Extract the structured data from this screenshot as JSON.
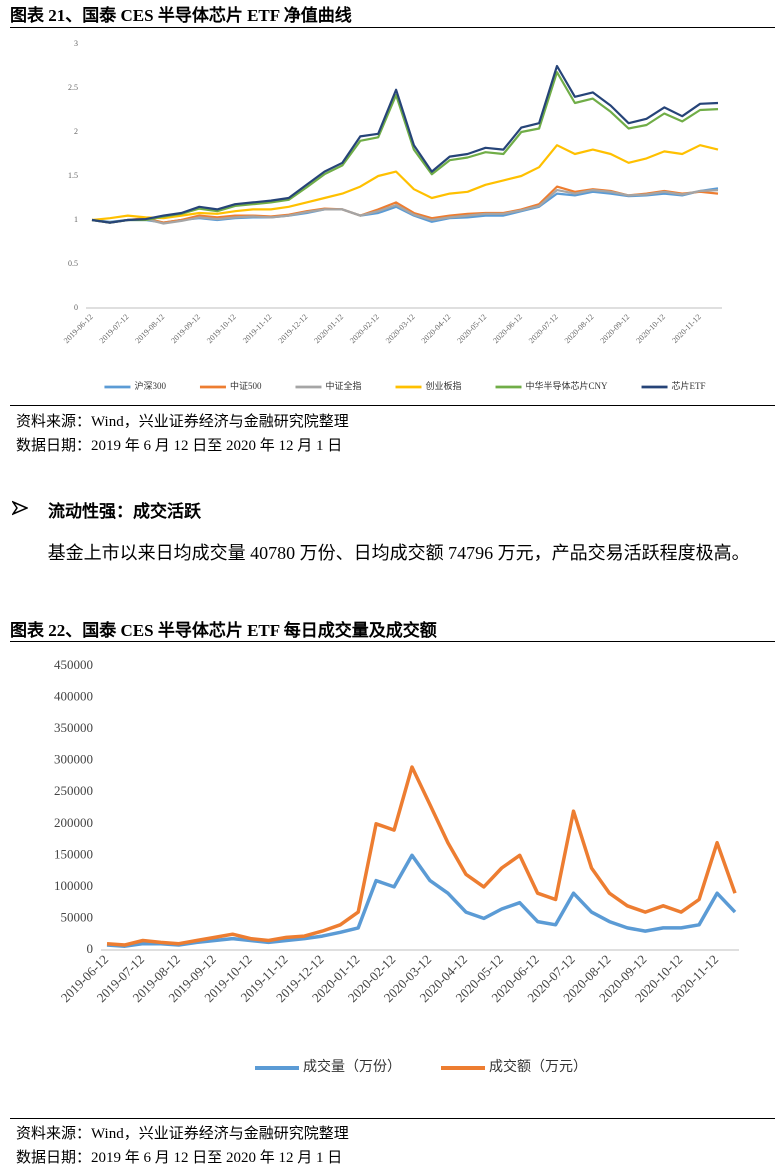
{
  "chart_data": [
    {
      "type": "line",
      "title": "图表 21、国泰 CES 半导体芯片 ETF 净值曲线",
      "categories": [
        "2019-06-12",
        null,
        "2019-07-12",
        null,
        "2019-08-12",
        null,
        "2019-09-12",
        null,
        "2019-10-12",
        null,
        "2019-11-12",
        null,
        "2019-12-12",
        null,
        "2020-01-12",
        null,
        "2020-02-12",
        null,
        "2020-03-12",
        null,
        "2020-04-12",
        null,
        "2020-05-12",
        null,
        "2020-06-12",
        null,
        "2020-07-12",
        null,
        "2020-08-12",
        null,
        "2020-09-12",
        null,
        "2020-10-12",
        null,
        "2020-11-12",
        null
      ],
      "ylim": [
        0,
        3
      ],
      "yticks": [
        0,
        0.5,
        1,
        1.5,
        2,
        2.5,
        3
      ],
      "grid": false,
      "series": [
        {
          "name": "沪深300",
          "color": "#5b9bd5",
          "values": [
            1.0,
            0.98,
            1.0,
            1.0,
            0.97,
            1.0,
            1.02,
            1.0,
            1.02,
            1.03,
            1.03,
            1.05,
            1.08,
            1.12,
            1.12,
            1.05,
            1.08,
            1.15,
            1.05,
            0.98,
            1.02,
            1.03,
            1.05,
            1.05,
            1.1,
            1.15,
            1.3,
            1.28,
            1.32,
            1.3,
            1.27,
            1.28,
            1.3,
            1.28,
            1.33,
            1.36
          ]
        },
        {
          "name": "中证500",
          "color": "#ed7d31",
          "values": [
            1.0,
            0.97,
            1.0,
            1.02,
            0.97,
            1.0,
            1.05,
            1.03,
            1.05,
            1.05,
            1.04,
            1.06,
            1.1,
            1.13,
            1.12,
            1.05,
            1.12,
            1.2,
            1.08,
            1.02,
            1.05,
            1.07,
            1.08,
            1.08,
            1.12,
            1.18,
            1.38,
            1.32,
            1.35,
            1.33,
            1.28,
            1.3,
            1.33,
            1.3,
            1.32,
            1.3
          ]
        },
        {
          "name": "中证全指",
          "color": "#a5a5a5",
          "values": [
            1.0,
            0.97,
            1.0,
            1.01,
            0.96,
            0.99,
            1.03,
            1.01,
            1.03,
            1.04,
            1.03,
            1.05,
            1.09,
            1.12,
            1.12,
            1.05,
            1.1,
            1.17,
            1.06,
            1.0,
            1.03,
            1.05,
            1.07,
            1.07,
            1.11,
            1.16,
            1.34,
            1.3,
            1.34,
            1.32,
            1.28,
            1.29,
            1.32,
            1.29,
            1.33,
            1.34
          ]
        },
        {
          "name": "创业板指",
          "color": "#ffc000",
          "values": [
            1.0,
            1.02,
            1.05,
            1.03,
            1.02,
            1.05,
            1.08,
            1.07,
            1.1,
            1.12,
            1.12,
            1.15,
            1.2,
            1.25,
            1.3,
            1.38,
            1.5,
            1.55,
            1.35,
            1.25,
            1.3,
            1.32,
            1.4,
            1.45,
            1.5,
            1.6,
            1.85,
            1.75,
            1.8,
            1.75,
            1.65,
            1.7,
            1.78,
            1.75,
            1.85,
            1.8
          ]
        },
        {
          "name": "中华半导体芯片CNY",
          "color": "#70ad47",
          "values": [
            1.0,
            0.97,
            1.0,
            1.0,
            1.04,
            1.07,
            1.13,
            1.1,
            1.16,
            1.18,
            1.2,
            1.23,
            1.37,
            1.52,
            1.62,
            1.9,
            1.94,
            2.42,
            1.8,
            1.52,
            1.68,
            1.71,
            1.77,
            1.75,
            2.0,
            2.04,
            2.68,
            2.33,
            2.38,
            2.23,
            2.04,
            2.08,
            2.21,
            2.12,
            2.25,
            2.26
          ]
        },
        {
          "name": "芯片ETF",
          "color": "#264478",
          "values": [
            1.0,
            0.97,
            1.0,
            1.01,
            1.05,
            1.08,
            1.15,
            1.12,
            1.18,
            1.2,
            1.22,
            1.25,
            1.4,
            1.55,
            1.65,
            1.95,
            1.98,
            2.48,
            1.85,
            1.55,
            1.72,
            1.75,
            1.82,
            1.8,
            2.05,
            2.1,
            2.75,
            2.4,
            2.45,
            2.3,
            2.1,
            2.15,
            2.28,
            2.18,
            2.32,
            2.33
          ]
        }
      ]
    },
    {
      "type": "line",
      "title": "图表 22、国泰 CES 半导体芯片 ETF 每日成交量及成交额",
      "categories": [
        "2019-06-12",
        null,
        "2019-07-12",
        null,
        "2019-08-12",
        null,
        "2019-09-12",
        null,
        "2019-10-12",
        null,
        "2019-11-12",
        null,
        "2019-12-12",
        null,
        "2020-01-12",
        null,
        "2020-02-12",
        null,
        "2020-03-12",
        null,
        "2020-04-12",
        null,
        "2020-05-12",
        null,
        "2020-06-12",
        null,
        "2020-07-12",
        null,
        "2020-08-12",
        null,
        "2020-09-12",
        null,
        "2020-10-12",
        null,
        "2020-11-12",
        null
      ],
      "ylim": [
        0,
        450000
      ],
      "yticks": [
        0,
        50000,
        100000,
        150000,
        200000,
        250000,
        300000,
        350000,
        400000,
        450000
      ],
      "grid": false,
      "series": [
        {
          "name": "成交量（万份）",
          "color": "#5b9bd5",
          "values": [
            8000,
            6000,
            10000,
            10000,
            8000,
            12000,
            15000,
            18000,
            15000,
            12000,
            15000,
            18000,
            22000,
            28000,
            35000,
            110000,
            100000,
            150000,
            110000,
            90000,
            60000,
            50000,
            65000,
            75000,
            45000,
            40000,
            90000,
            60000,
            45000,
            35000,
            30000,
            35000,
            35000,
            40000,
            90000,
            60000
          ]
        },
        {
          "name": "成交额（万元）",
          "color": "#ed7d31",
          "values": [
            10000,
            8000,
            15000,
            12000,
            10000,
            15000,
            20000,
            25000,
            18000,
            15000,
            20000,
            22000,
            30000,
            40000,
            60000,
            200000,
            190000,
            290000,
            230000,
            170000,
            120000,
            100000,
            130000,
            150000,
            90000,
            80000,
            220000,
            130000,
            90000,
            70000,
            60000,
            70000,
            60000,
            80000,
            170000,
            90000
          ]
        }
      ]
    }
  ],
  "notes": [
    {
      "source": "资料来源：Wind，兴业证券经济与金融研究院整理",
      "date": "数据日期：2019 年 6 月 12 日至 2020 年 12 月 1 日"
    },
    {
      "source": "资料来源：Wind，兴业证券经济与金融研究院整理",
      "date": "数据日期：2019 年 6 月 12 日至 2020 年 12 月 1 日"
    }
  ],
  "body": {
    "bullet": "流动性强：成交活跃",
    "paragraph": "基金上市以来日均成交量 40780 万份、日均成交额 74796 万元，产品交易活跃程度极高。"
  }
}
